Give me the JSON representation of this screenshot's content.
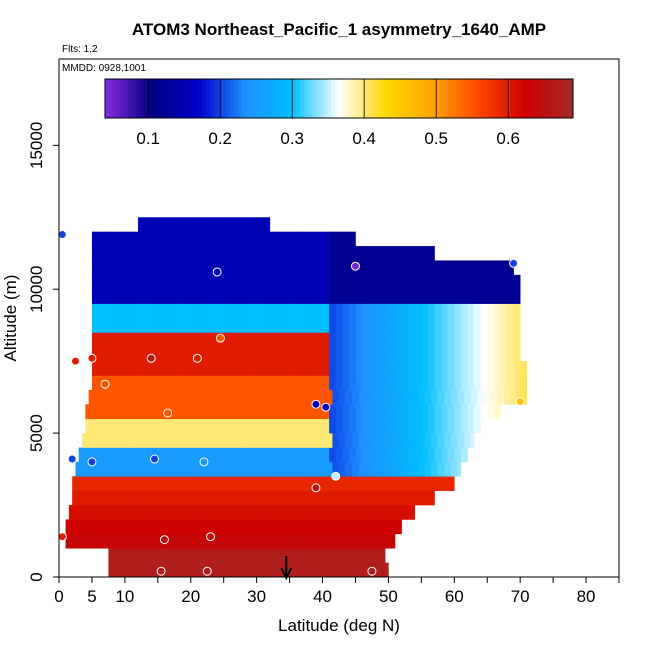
{
  "chart_data": {
    "type": "heatmap",
    "title": "ATOM3 Northeast_Pacific_1 asymmetry_1640_AMP",
    "flights_label": "Flts: 1,2",
    "dates_label": "MMDD: 0928,1001",
    "xlabel": "Latitude (deg N)",
    "ylabel": "Altitude (m)",
    "xlim": [
      0,
      85
    ],
    "ylim": [
      0,
      18000
    ],
    "x_ticks": [
      0,
      5,
      10,
      20,
      30,
      40,
      50,
      60,
      70,
      80
    ],
    "y_ticks": [
      0,
      5000,
      10000,
      15000
    ],
    "grid": false,
    "colorbar": {
      "ticks": [
        0.1,
        0.2,
        0.3,
        0.4,
        0.5,
        0.6
      ],
      "range": [
        0.04,
        0.69
      ],
      "colors": [
        "#8a2be2",
        "#000080",
        "#0000cd",
        "#1e90ff",
        "#00bfff",
        "#ffffff",
        "#ffd700",
        "#ffa500",
        "#ff4500",
        "#cc0000",
        "#a52a2a"
      ]
    },
    "altitude_bins": [
      0,
      500,
      1000,
      1500,
      2000,
      2500,
      3000,
      3500,
      4000,
      4500,
      5000,
      5500,
      6000,
      6500,
      7000,
      7500,
      8000,
      8500,
      9000,
      9500,
      10000,
      10500,
      11000,
      11500,
      12000
    ],
    "latitude_extent_by_bin": [
      [
        7.5,
        50
      ],
      [
        7.5,
        49.5
      ],
      [
        1,
        51
      ],
      [
        1,
        52
      ],
      [
        1.5,
        54
      ],
      [
        2,
        57
      ],
      [
        2,
        60
      ],
      [
        2.5,
        61
      ],
      [
        3,
        62
      ],
      [
        3.5,
        63
      ],
      [
        4,
        65
      ],
      [
        4,
        67
      ],
      [
        4.5,
        71
      ],
      [
        5,
        71
      ],
      [
        5,
        71
      ],
      [
        5,
        70
      ],
      [
        5,
        70
      ],
      [
        5,
        70
      ],
      [
        5,
        70
      ],
      [
        5,
        70
      ],
      [
        5,
        70
      ],
      [
        5,
        69
      ],
      [
        5,
        57
      ],
      [
        5,
        45
      ],
      [
        12,
        32
      ]
    ],
    "profile_points": [
      {
        "lat": 0.5,
        "alt": 11900,
        "value": 0.2
      },
      {
        "lat": 24,
        "alt": 10600,
        "value": 0.15
      },
      {
        "lat": 45,
        "alt": 10800,
        "value": 0.05
      },
      {
        "lat": 69,
        "alt": 10900,
        "value": 0.2
      },
      {
        "lat": 24.5,
        "alt": 8300,
        "value": 0.55
      },
      {
        "lat": 2.5,
        "alt": 7500,
        "value": 0.6
      },
      {
        "lat": 5,
        "alt": 7600,
        "value": 0.6
      },
      {
        "lat": 14,
        "alt": 7600,
        "value": 0.65
      },
      {
        "lat": 21,
        "alt": 7600,
        "value": 0.6
      },
      {
        "lat": 7,
        "alt": 6700,
        "value": 0.55
      },
      {
        "lat": 16.5,
        "alt": 5700,
        "value": 0.55
      },
      {
        "lat": 39,
        "alt": 6000,
        "value": 0.15
      },
      {
        "lat": 40.5,
        "alt": 5900,
        "value": 0.15
      },
      {
        "lat": 70,
        "alt": 6100,
        "value": 0.45
      },
      {
        "lat": 2,
        "alt": 4100,
        "value": 0.2
      },
      {
        "lat": 5,
        "alt": 4000,
        "value": 0.2
      },
      {
        "lat": 14.5,
        "alt": 4100,
        "value": 0.2
      },
      {
        "lat": 22,
        "alt": 4000,
        "value": 0.25
      },
      {
        "lat": 42,
        "alt": 3500,
        "value": 0.35
      },
      {
        "lat": 39,
        "alt": 3100,
        "value": 0.65
      },
      {
        "lat": 0.5,
        "alt": 1400,
        "value": 0.6
      },
      {
        "lat": 16,
        "alt": 1300,
        "value": 0.65
      },
      {
        "lat": 23,
        "alt": 1400,
        "value": 0.65
      },
      {
        "lat": 15.5,
        "alt": 200,
        "value": 0.67
      },
      {
        "lat": 22.5,
        "alt": 200,
        "value": 0.67
      },
      {
        "lat": 47.5,
        "alt": 200,
        "value": 0.67
      }
    ],
    "arrow_latitude": 34.5
  }
}
